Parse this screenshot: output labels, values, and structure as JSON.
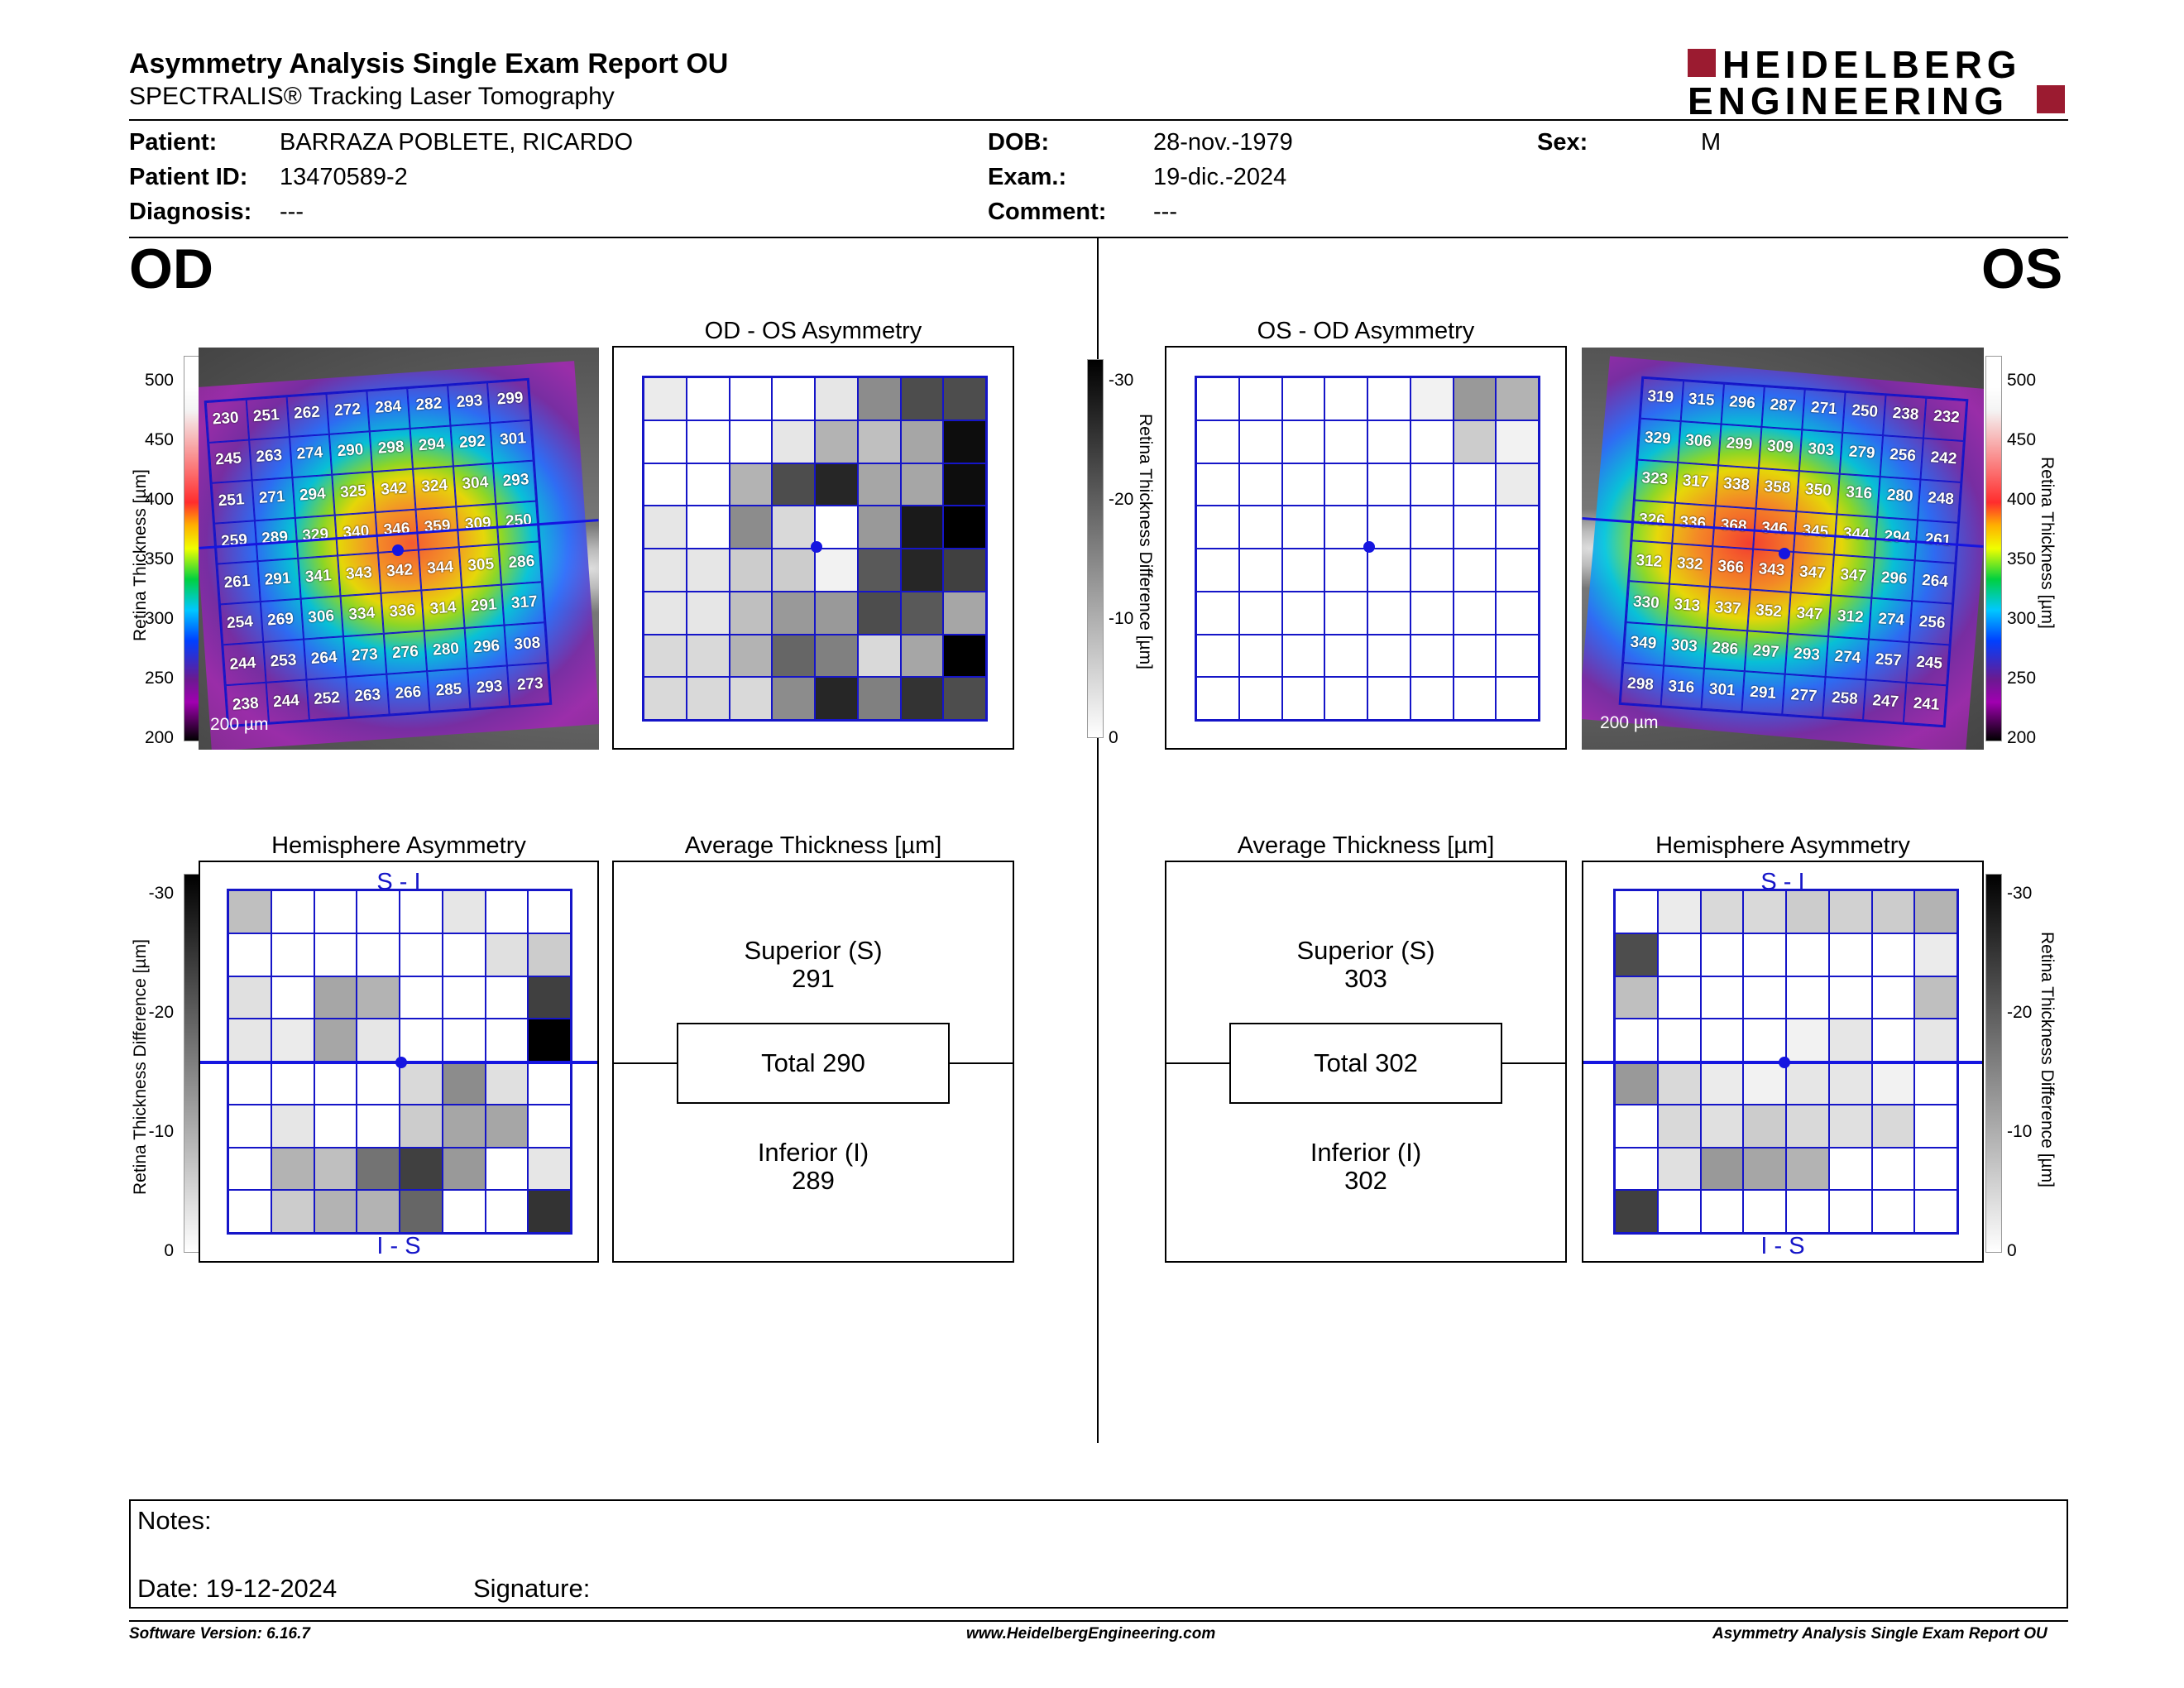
{
  "header": {
    "title": "Asymmetry Analysis Single Exam Report OU",
    "subtitle": "SPECTRALIS® Tracking Laser Tomography",
    "logo_line1": "HEIDELBERG",
    "logo_line2": "ENGINEERING"
  },
  "patient": {
    "patient_label": "Patient:",
    "patient_value": "BARRAZA POBLETE, RICARDO",
    "id_label": "Patient ID:",
    "id_value": "13470589-2",
    "diagnosis_label": "Diagnosis:",
    "diagnosis_value": "---",
    "dob_label": "DOB:",
    "dob_value": "28-nov.-1979",
    "exam_label": "Exam.:",
    "exam_value": "19-dic.-2024",
    "comment_label": "Comment:",
    "comment_value": "---",
    "sex_label": "Sex:",
    "sex_value": "M"
  },
  "od": {
    "eye_label": "OD",
    "scale_ticks": [
      "500",
      "450",
      "400",
      "350",
      "300",
      "250",
      "200"
    ],
    "scale_axis_label": "Retina Thickness [µm]",
    "scalebar_label": "200 µm",
    "thickness_grid": [
      [
        230,
        251,
        262,
        272,
        284,
        282,
        293,
        299
      ],
      [
        245,
        263,
        274,
        290,
        298,
        294,
        292,
        301
      ],
      [
        251,
        271,
        294,
        325,
        342,
        324,
        304,
        293
      ],
      [
        259,
        289,
        329,
        340,
        346,
        359,
        309,
        250
      ],
      [
        261,
        291,
        341,
        343,
        342,
        344,
        305,
        286
      ],
      [
        254,
        269,
        306,
        334,
        336,
        314,
        291,
        317
      ],
      [
        244,
        253,
        264,
        273,
        276,
        280,
        296,
        308
      ],
      [
        238,
        244,
        252,
        263,
        266,
        285,
        293,
        273
      ]
    ],
    "asym_title": "OD - OS Asymmetry",
    "asym_gray": [
      [
        0.08,
        0,
        0,
        0,
        0.1,
        0.45,
        0.7,
        0.7
      ],
      [
        0,
        0,
        0,
        0.1,
        0.3,
        0.25,
        0.35,
        0.95
      ],
      [
        0,
        0,
        0.3,
        0.7,
        0.85,
        0.35,
        0.35,
        0.95
      ],
      [
        0.1,
        0,
        0.45,
        0.15,
        0,
        0.4,
        0.9,
        1.0
      ],
      [
        0.1,
        0.1,
        0.2,
        0.2,
        0.05,
        0.65,
        0.85,
        0.75
      ],
      [
        0.1,
        0.1,
        0.25,
        0.4,
        0.4,
        0.7,
        0.65,
        0.35
      ],
      [
        0.15,
        0.15,
        0.3,
        0.6,
        0.5,
        0.15,
        0.35,
        1.0
      ],
      [
        0.15,
        0.15,
        0.15,
        0.45,
        0.85,
        0.5,
        0.8,
        0.7
      ]
    ],
    "diff_ticks": [
      "-30",
      "-20",
      "-10",
      "0"
    ],
    "diff_axis_label": "Retina Thickness Difference [µm]",
    "hemi_title": "Hemisphere Asymmetry",
    "hemi_top_label": "S - I",
    "hemi_bottom_label": "I - S",
    "hemi_gray": [
      [
        0.25,
        0,
        0,
        0,
        0,
        0.1,
        0,
        0
      ],
      [
        0,
        0,
        0,
        0,
        0,
        0,
        0.12,
        0.2
      ],
      [
        0.12,
        0,
        0.35,
        0.3,
        0,
        0,
        0,
        0.75
      ],
      [
        0.1,
        0.08,
        0.35,
        0.1,
        0,
        0,
        0,
        1.0
      ],
      [
        0,
        0,
        0,
        0,
        0.15,
        0.45,
        0.12,
        0
      ],
      [
        0,
        0.1,
        0,
        0,
        0.2,
        0.35,
        0.35,
        0
      ],
      [
        0,
        0.3,
        0.25,
        0.55,
        0.75,
        0.4,
        0,
        0.1
      ],
      [
        0,
        0.2,
        0.3,
        0.3,
        0.6,
        0,
        0,
        0.8
      ]
    ],
    "avg_title": "Average Thickness [µm]",
    "superior_label": "Superior (S)",
    "superior_value": "291",
    "total_label": "Total 290",
    "inferior_label": "Inferior (I)",
    "inferior_value": "289"
  },
  "os": {
    "eye_label": "OS",
    "scale_ticks": [
      "500",
      "450",
      "400",
      "350",
      "300",
      "250",
      "200"
    ],
    "scale_axis_label": "Retina Thickness [µm]",
    "scalebar_label": "200 µm",
    "thickness_grid": [
      [
        319,
        315,
        296,
        287,
        271,
        250,
        238,
        232
      ],
      [
        329,
        306,
        299,
        309,
        303,
        279,
        256,
        242
      ],
      [
        323,
        317,
        338,
        358,
        350,
        316,
        280,
        248
      ],
      [
        326,
        336,
        368,
        346,
        345,
        344,
        294,
        261
      ],
      [
        312,
        332,
        366,
        343,
        347,
        347,
        296,
        264
      ],
      [
        330,
        313,
        337,
        352,
        347,
        312,
        274,
        256
      ],
      [
        349,
        303,
        286,
        297,
        293,
        274,
        257,
        245
      ],
      [
        298,
        316,
        301,
        291,
        277,
        258,
        247,
        241
      ]
    ],
    "asym_title": "OS - OD Asymmetry",
    "asym_gray": [
      [
        0,
        0,
        0,
        0,
        0,
        0.05,
        0.4,
        0.3
      ],
      [
        0,
        0,
        0,
        0,
        0,
        0,
        0.2,
        0.05
      ],
      [
        0,
        0,
        0,
        0,
        0,
        0,
        0,
        0.08
      ],
      [
        0,
        0,
        0,
        0,
        0,
        0,
        0,
        0
      ],
      [
        0,
        0,
        0,
        0,
        0,
        0,
        0,
        0
      ],
      [
        0,
        0,
        0,
        0,
        0,
        0,
        0,
        0
      ],
      [
        0,
        0,
        0,
        0,
        0,
        0,
        0,
        0
      ],
      [
        0,
        0,
        0,
        0,
        0,
        0,
        0,
        0
      ]
    ],
    "diff_ticks": [
      "-30",
      "-20",
      "-10",
      "0"
    ],
    "diff_axis_label": "Retina Thickness Difference [µm]",
    "hemi_title": "Hemisphere Asymmetry",
    "hemi_top_label": "S - I",
    "hemi_bottom_label": "I - S",
    "hemi_gray": [
      [
        0,
        0.08,
        0.15,
        0.15,
        0.2,
        0.18,
        0.2,
        0.3
      ],
      [
        0.7,
        0,
        0,
        0,
        0,
        0,
        0,
        0.08
      ],
      [
        0.25,
        0,
        0,
        0,
        0,
        0,
        0,
        0.25
      ],
      [
        0,
        0,
        0,
        0,
        0.05,
        0.1,
        0,
        0.1
      ],
      [
        0.4,
        0.15,
        0.08,
        0.05,
        0.1,
        0.1,
        0.05,
        0
      ],
      [
        0,
        0.15,
        0.12,
        0.2,
        0.15,
        0.12,
        0.15,
        0
      ],
      [
        0,
        0.12,
        0.4,
        0.35,
        0.3,
        0,
        0,
        0
      ],
      [
        0.75,
        0,
        0,
        0,
        0,
        0,
        0,
        0
      ]
    ],
    "avg_title": "Average Thickness [µm]",
    "superior_label": "Superior (S)",
    "superior_value": "303",
    "total_label": "Total 302",
    "inferior_label": "Inferior (I)",
    "inferior_value": "302"
  },
  "notes": {
    "notes_label": "Notes:",
    "date_label": "Date: 19-12-2024",
    "signature_label": "Signature:"
  },
  "footer": {
    "software": "Software Version: 6.16.7",
    "website": "www.HeidelbergEngineering.com",
    "report_name": "Asymmetry Analysis Single Exam Report OU"
  }
}
